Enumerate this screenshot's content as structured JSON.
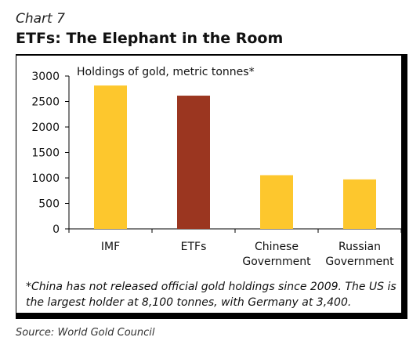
{
  "chart_number": "Chart 7",
  "title": "ETFs: The Elephant in the Room",
  "note": "*China has not released official gold holdings since 2009. The US is the largest holder at 8,100  tonnes, with Germany at 3,400.",
  "source": "Source: World Gold Council",
  "chart_data": {
    "type": "bar",
    "title": "ETFs: The Elephant in the Room",
    "ylabel": "Holdings of gold, metric tonnes*",
    "categories": [
      [
        "IMF"
      ],
      [
        "ETFs"
      ],
      [
        "Chinese",
        "Government"
      ],
      [
        "Russian",
        "Government"
      ]
    ],
    "values": [
      2814,
      2615,
      1054,
      971
    ],
    "colors": [
      "#FDC72D",
      "#9B3620",
      "#FDC72D",
      "#FDC72D"
    ],
    "ylim": [
      0,
      3000
    ],
    "yticks": [
      0,
      500,
      1000,
      1500,
      2000,
      2500,
      3000
    ],
    "grid": false,
    "legend": "none"
  }
}
